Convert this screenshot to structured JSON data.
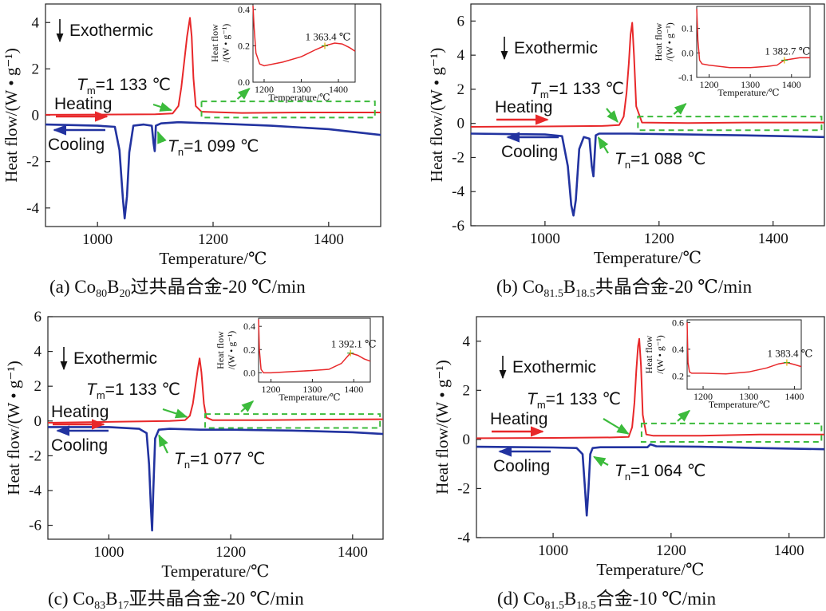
{
  "chart_data": [
    {
      "type": "line",
      "caption": {
        "label": "(a) ",
        "base1": "Co",
        "sub1": "80",
        "base2": "B",
        "sub2": "20",
        "suffix": "过共晶合金-20 ℃/min"
      },
      "xlabel": "Temperature/℃",
      "ylabel": "Heat flow/(W • g⁻¹)",
      "xlim": [
        910,
        1490
      ],
      "ylim": [
        -4.8,
        4.8
      ],
      "xticks": [
        1000,
        1200,
        1400
      ],
      "yticks": [
        -4,
        -2,
        0,
        2,
        4
      ],
      "tm_text": "1 133 ℃",
      "tn_text": "1 099 ℃",
      "labels": {
        "exo": "Exothermic",
        "heat": "Heating",
        "cool": "Cooling"
      },
      "series": [
        {
          "name": "Heating",
          "color": "#e8282a",
          "x": [
            910,
            1000,
            1100,
            1130,
            1140,
            1145,
            1150,
            1155,
            1160,
            1163,
            1166,
            1170,
            1180,
            1250,
            1350,
            1490
          ],
          "y": [
            0.02,
            0.03,
            0.04,
            0.08,
            0.4,
            1.2,
            2.3,
            3.4,
            4.2,
            3.4,
            1.6,
            0.4,
            0.15,
            0.1,
            0.12,
            0.12
          ]
        },
        {
          "name": "Cooling",
          "color": "#2233a0",
          "x": [
            910,
            1000,
            1030,
            1038,
            1044,
            1047,
            1051,
            1055,
            1062,
            1080,
            1094,
            1097,
            1099,
            1101,
            1110,
            1140,
            1200,
            1300,
            1400,
            1490
          ],
          "y": [
            -0.4,
            -0.45,
            -0.5,
            -1.5,
            -3.6,
            -4.45,
            -3.5,
            -1.6,
            -0.45,
            -0.4,
            -0.45,
            -1.2,
            -1.55,
            -0.45,
            -0.35,
            -0.3,
            -0.35,
            -0.45,
            -0.6,
            -0.85
          ]
        }
      ],
      "box": {
        "x": [
          1180,
          1480
        ],
        "y": [
          -0.1,
          0.6
        ]
      },
      "inset": {
        "xlabel": "Temperature/℃",
        "ylabel_1": "Heat flow",
        "ylabel_2": "/(W • g⁻¹)",
        "xlim": [
          1170,
          1445
        ],
        "ylim": [
          0.0,
          0.43
        ],
        "xticks": [
          1200,
          1300,
          1400
        ],
        "yticks": [
          0.0,
          0.2,
          0.4
        ],
        "peak_label": "1 363.4 ℃",
        "peak": [
          1363.4,
          0.2
        ],
        "x": [
          1170,
          1173,
          1178,
          1188,
          1200,
          1250,
          1300,
          1340,
          1363,
          1390,
          1410,
          1430,
          1445
        ],
        "y": [
          0.42,
          0.3,
          0.16,
          0.1,
          0.09,
          0.11,
          0.14,
          0.18,
          0.2,
          0.215,
          0.21,
          0.19,
          0.17
        ]
      }
    },
    {
      "type": "line",
      "caption": {
        "label": "(b) ",
        "base1": "Co",
        "sub1": "81.5",
        "base2": "B",
        "sub2": "18.5",
        "suffix": "共晶合金-20 ℃/min"
      },
      "xlabel": "Temperature/℃",
      "ylabel": "Heat flow/(W • g⁻¹)",
      "xlim": [
        870,
        1490
      ],
      "ylim": [
        -6,
        7
      ],
      "xticks": [
        1000,
        1200,
        1400
      ],
      "yticks": [
        -6,
        -4,
        -2,
        0,
        2,
        4,
        6
      ],
      "tm_text": "1 133 ℃",
      "tn_text": "1 088 ℃",
      "labels": {
        "exo": "Exothermic",
        "heat": "Heating",
        "cool": "Cooling"
      },
      "series": [
        {
          "name": "Heating",
          "color": "#e8282a",
          "x": [
            870,
            1000,
            1100,
            1130,
            1138,
            1143,
            1147,
            1150,
            1153,
            1156,
            1160,
            1170,
            1250,
            1350,
            1490
          ],
          "y": [
            -0.2,
            -0.18,
            -0.15,
            -0.1,
            0.4,
            1.8,
            3.5,
            5.2,
            5.9,
            4.0,
            1.0,
            0.05,
            0.02,
            0.05,
            0.05
          ]
        },
        {
          "name": "Cooling",
          "color": "#2233a0",
          "x": [
            870,
            1000,
            1030,
            1040,
            1046,
            1050,
            1054,
            1060,
            1068,
            1078,
            1082,
            1085,
            1089,
            1095,
            1150,
            1250,
            1350,
            1490
          ],
          "y": [
            -0.6,
            -0.65,
            -0.75,
            -2.5,
            -4.8,
            -5.4,
            -4.5,
            -1.5,
            -0.8,
            -0.9,
            -2.5,
            -3.1,
            -0.7,
            -0.6,
            -0.6,
            -0.65,
            -0.7,
            -0.8
          ]
        }
      ],
      "box": {
        "x": [
          1163,
          1485
        ],
        "y": [
          -0.4,
          0.4
        ]
      },
      "inset": {
        "xlabel": "Temperature/℃",
        "ylabel_1": "Heat flow",
        "ylabel_2": "/(W • g⁻¹)",
        "xlim": [
          1170,
          1445
        ],
        "ylim": [
          -0.1,
          0.19
        ],
        "xticks": [
          1200,
          1300,
          1400
        ],
        "yticks": [
          -0.1,
          0.0,
          0.1
        ],
        "peak_label": "1 382.7 ℃",
        "peak": [
          1382.7,
          -0.03
        ],
        "x": [
          1170,
          1173,
          1177,
          1183,
          1200,
          1250,
          1300,
          1340,
          1365,
          1382,
          1400,
          1420,
          1445
        ],
        "y": [
          0.18,
          0.05,
          -0.03,
          -0.045,
          -0.05,
          -0.06,
          -0.06,
          -0.055,
          -0.05,
          -0.03,
          -0.025,
          -0.02,
          -0.02
        ]
      }
    },
    {
      "type": "line",
      "caption": {
        "label": "(c) ",
        "base1": "Co",
        "sub1": "83",
        "base2": "B",
        "sub2": "17",
        "suffix": "亚共晶合金-20 ℃/min"
      },
      "xlabel": "Temperature/℃",
      "ylabel": "Heat flow/(W • g⁻¹)",
      "xlim": [
        900,
        1450
      ],
      "ylim": [
        -6.8,
        6
      ],
      "xticks": [
        1000,
        1200,
        1400
      ],
      "yticks": [
        -6,
        -4,
        -2,
        0,
        2,
        4,
        6
      ],
      "tm_text": "1 133 ℃",
      "tn_text": "1 077 ℃",
      "labels": {
        "exo": "Exothermic",
        "heat": "Heating",
        "cool": "Cooling"
      },
      "series": [
        {
          "name": "Heating",
          "color": "#e8282a",
          "x": [
            900,
            1000,
            1100,
            1125,
            1133,
            1138,
            1142,
            1146,
            1149,
            1152,
            1156,
            1160,
            1170,
            1250,
            1350,
            1450
          ],
          "y": [
            -0.1,
            -0.05,
            0.0,
            0.05,
            0.3,
            1.0,
            2.0,
            3.0,
            3.6,
            2.8,
            1.0,
            0.2,
            0.05,
            0.05,
            0.08,
            0.1
          ]
        },
        {
          "name": "Cooling",
          "color": "#2233a0",
          "x": [
            900,
            1000,
            1050,
            1062,
            1066,
            1069,
            1071,
            1073,
            1076,
            1082,
            1100,
            1150,
            1200,
            1300,
            1400,
            1450
          ],
          "y": [
            -0.35,
            -0.35,
            -0.45,
            -0.7,
            -2.5,
            -5.0,
            -6.3,
            -4.0,
            -1.0,
            -0.5,
            -0.45,
            -0.5,
            -0.5,
            -0.55,
            -0.65,
            -0.75
          ]
        }
      ],
      "box": {
        "x": [
          1158,
          1445
        ],
        "y": [
          -0.4,
          0.4
        ]
      },
      "inset": {
        "xlabel": "Temperature/℃",
        "ylabel_1": "Heat flow",
        "ylabel_2": "/(W • g⁻¹)",
        "xlim": [
          1170,
          1440
        ],
        "ylim": [
          -0.08,
          0.47
        ],
        "xticks": [
          1200,
          1300,
          1400
        ],
        "yticks": [
          0.0,
          0.2,
          0.4
        ],
        "peak_label": "1 392.1 ℃",
        "peak": [
          1392.1,
          0.17
        ],
        "x": [
          1170,
          1172,
          1176,
          1182,
          1200,
          1250,
          1300,
          1340,
          1370,
          1392,
          1410,
          1425,
          1440
        ],
        "y": [
          0.46,
          0.2,
          0.03,
          0.0,
          0.0,
          0.01,
          0.02,
          0.03,
          0.08,
          0.17,
          0.15,
          0.12,
          0.1
        ]
      }
    },
    {
      "type": "line",
      "caption": {
        "label": "(d) ",
        "base1": "Co",
        "sub1": "81.5",
        "base2": "B",
        "sub2": "18.5",
        "suffix": "合金-10 ℃/min"
      },
      "xlabel": "Temperature/℃",
      "ylabel": "Heat flow/(W • g⁻¹)",
      "xlim": [
        870,
        1460
      ],
      "ylim": [
        -4,
        5
      ],
      "xticks": [
        1000,
        1200,
        1400
      ],
      "yticks": [
        -4,
        -2,
        0,
        2,
        4
      ],
      "tm_text": "1 133 ℃",
      "tn_text": "1 064 ℃",
      "labels": {
        "exo": "Exothermic",
        "heat": "Heating",
        "cool": "Cooling"
      },
      "series": [
        {
          "name": "Heating",
          "color": "#e8282a",
          "x": [
            870,
            1000,
            1100,
            1128,
            1134,
            1138,
            1141,
            1144,
            1146,
            1149,
            1152,
            1158,
            1170,
            1250,
            1350,
            1460
          ],
          "y": [
            0.05,
            0.06,
            0.08,
            0.1,
            0.5,
            1.5,
            2.8,
            3.8,
            4.1,
            3.0,
            1.0,
            0.2,
            0.15,
            0.15,
            0.2,
            0.2
          ]
        },
        {
          "name": "Cooling",
          "color": "#2233a0",
          "x": [
            870,
            1000,
            1040,
            1050,
            1054,
            1057,
            1060,
            1063,
            1067,
            1080,
            1160,
            1165,
            1175,
            1250,
            1350,
            1460
          ],
          "y": [
            -0.3,
            -0.33,
            -0.35,
            -0.6,
            -2.0,
            -3.1,
            -2.0,
            -0.6,
            -0.35,
            -0.32,
            -0.32,
            -0.2,
            -0.28,
            -0.3,
            -0.35,
            -0.4
          ]
        }
      ],
      "box": {
        "x": [
          1150,
          1455
        ],
        "y": [
          -0.1,
          0.65
        ]
      },
      "inset": {
        "xlabel": "Temperature/℃",
        "ylabel_1": "Heat flow",
        "ylabel_2": "/(W • g⁻¹)",
        "xlim": [
          1165,
          1415
        ],
        "ylim": [
          0.1,
          0.62
        ],
        "xticks": [
          1200,
          1300,
          1400
        ],
        "yticks": [
          0.2,
          0.4,
          0.6
        ],
        "peak_label": "1 383.4 ℃",
        "peak": [
          1383.4,
          0.3
        ],
        "x": [
          1165,
          1167,
          1170,
          1175,
          1200,
          1250,
          1300,
          1340,
          1365,
          1383,
          1400,
          1415
        ],
        "y": [
          0.6,
          0.3,
          0.23,
          0.22,
          0.22,
          0.215,
          0.23,
          0.26,
          0.29,
          0.3,
          0.285,
          0.27
        ]
      }
    }
  ]
}
